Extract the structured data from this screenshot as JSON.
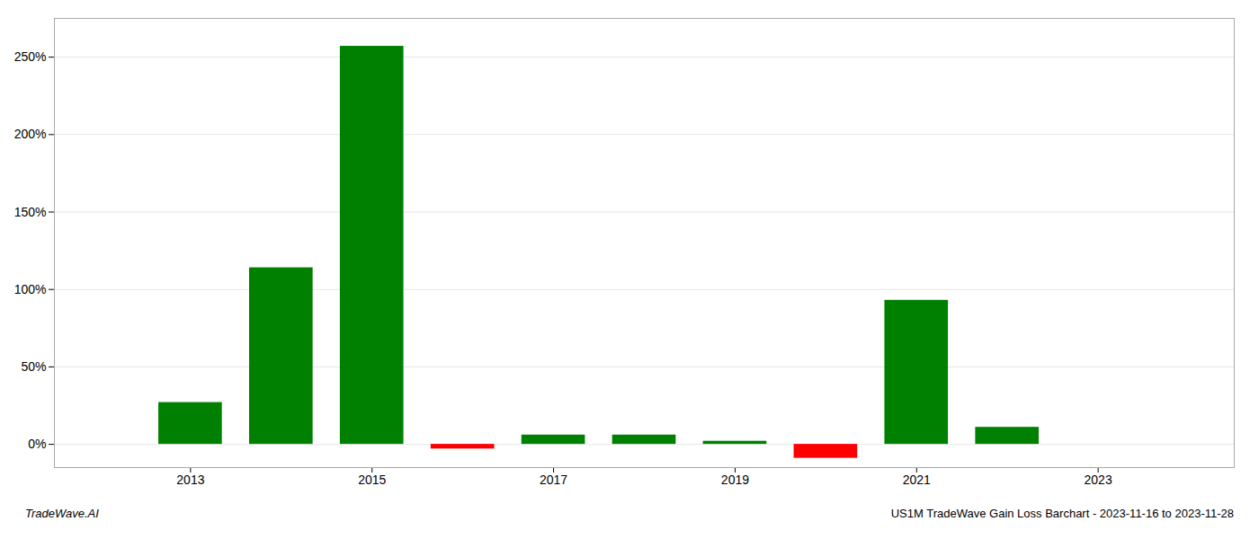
{
  "chart_data": {
    "type": "bar",
    "x": [
      2013,
      2014,
      2015,
      2016,
      2017,
      2018,
      2019,
      2020,
      2021,
      2022,
      2023
    ],
    "values": [
      0.27,
      1.14,
      2.57,
      -0.03,
      0.06,
      0.06,
      0.02,
      -0.09,
      0.93,
      0.11,
      0.0
    ],
    "colors": [
      "#008000",
      "#008000",
      "#008000",
      "#ff0000",
      "#008000",
      "#008000",
      "#008000",
      "#ff0000",
      "#008000",
      "#008000",
      "#008000"
    ],
    "xlim": [
      2011.5,
      2024.5
    ],
    "xticks": [
      2013,
      2015,
      2017,
      2019,
      2021,
      2023
    ],
    "ylim": [
      -0.15,
      2.75
    ],
    "yticks": [
      {
        "value": 0.0,
        "label": "0%"
      },
      {
        "value": 0.5,
        "label": "50%"
      },
      {
        "value": 1.0,
        "label": "100%"
      },
      {
        "value": 1.5,
        "label": "150%"
      },
      {
        "value": 2.0,
        "label": "200%"
      },
      {
        "value": 2.5,
        "label": "250%"
      }
    ],
    "grid": true,
    "annotations": [
      "TradeWave.AI",
      "US1M TradeWave Gain Loss Barchart - 2023-11-16 to 2023-11-28"
    ]
  }
}
